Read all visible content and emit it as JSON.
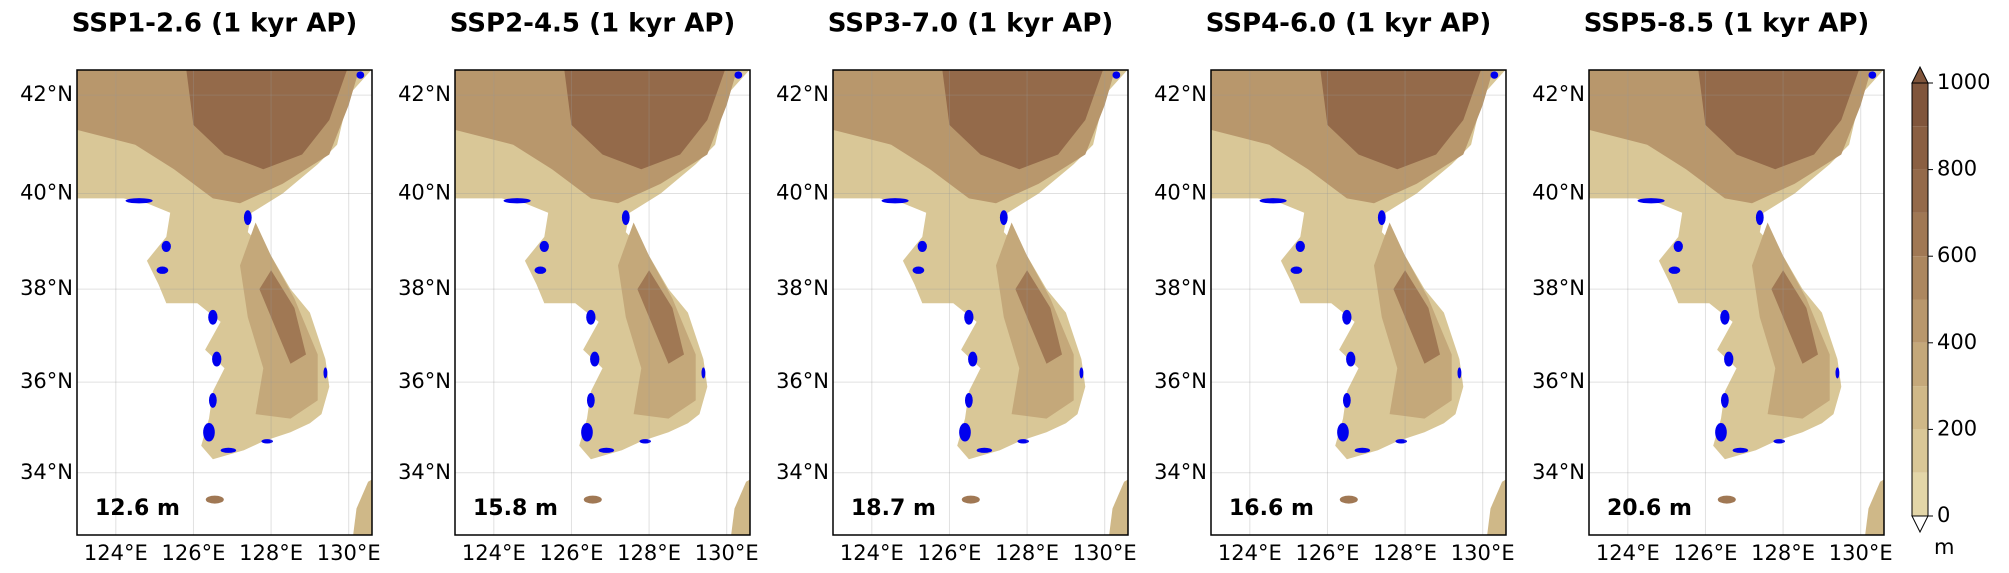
{
  "panels": [
    {
      "title": "SSP1-2.6 (1 kyr AP)",
      "sea_level": "12.6 m"
    },
    {
      "title": "SSP2-4.5 (1 kyr AP)",
      "sea_level": "15.8 m"
    },
    {
      "title": "SSP3-7.0 (1 kyr AP)",
      "sea_level": "18.7 m"
    },
    {
      "title": "SSP4-6.0 (1 kyr AP)",
      "sea_level": "16.6 m"
    },
    {
      "title": "SSP5-8.5 (1 kyr AP)",
      "sea_level": "20.6 m"
    }
  ],
  "map": {
    "xlim": [
      123,
      130.6
    ],
    "ylim": [
      32.6,
      42.5
    ],
    "xticks": [
      {
        "value": 124,
        "label": "124°E"
      },
      {
        "value": 126,
        "label": "126°E"
      },
      {
        "value": 128,
        "label": "128°E"
      },
      {
        "value": 130,
        "label": "130°E"
      }
    ],
    "yticks": [
      {
        "value": 34,
        "label": "34°N"
      },
      {
        "value": 36,
        "label": "36°N"
      },
      {
        "value": 38,
        "label": "38°N"
      },
      {
        "value": 40,
        "label": "40°N"
      },
      {
        "value": 42,
        "label": "42°N"
      }
    ],
    "grid": true
  },
  "colorbar": {
    "lim": [
      0,
      1000
    ],
    "ticks": [
      0,
      200,
      400,
      600,
      800,
      1000
    ],
    "unit": "m",
    "colors": [
      "#e3d6a8",
      "#d9c797",
      "#cfb888",
      "#c4a87a",
      "#b8976c",
      "#ac875f",
      "#a07854",
      "#946a4a",
      "#8a5f42",
      "#80553b"
    ]
  }
}
